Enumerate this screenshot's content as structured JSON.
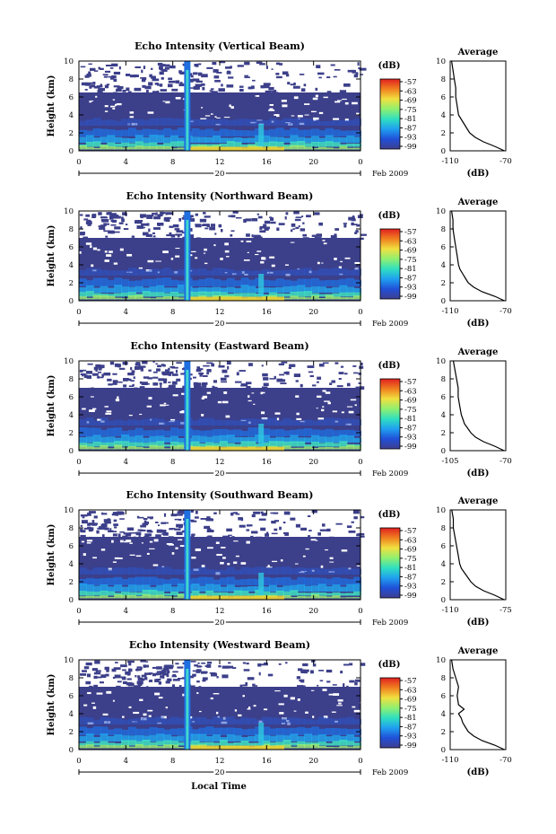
{
  "panels": [
    {
      "id": "vertical",
      "title": "Echo Intensity (Vertical Beam)",
      "date_center": "20",
      "date_label": "Feb 2009",
      "avg_xticks": [
        "-110",
        "-70"
      ]
    },
    {
      "id": "northward",
      "title": "Echo Intensity (Northward Beam)",
      "date_center": "20",
      "date_label": "Feb 2009",
      "avg_xticks": [
        "-110",
        "-70"
      ]
    },
    {
      "id": "eastward",
      "title": "Echo Intensity (Eastward Beam)",
      "date_center": "20",
      "date_label": "Feb 2009",
      "avg_xticks": [
        "-105",
        "-70"
      ]
    },
    {
      "id": "southward",
      "title": "Echo Intensity (Southward Beam)",
      "date_center": "20",
      "date_label": "Feb 2009",
      "avg_xticks": [
        "-110",
        "-75"
      ]
    },
    {
      "id": "westward",
      "title": "Echo Intensity (Westward Beam)",
      "date_center": "20",
      "date_label": "Feb 2009",
      "avg_xticks": [
        "-110",
        "-70"
      ]
    }
  ],
  "shared": {
    "ylabel": "Height (km)",
    "xlabel": "Local Time",
    "colorbar_unit": "(dB)",
    "avg_title": "Average",
    "avg_xlabel": "(dB)",
    "colorbar_ticks": [
      "-57",
      "-63",
      "-69",
      "-75",
      "-81",
      "-87",
      "-93",
      "-99"
    ],
    "colorbar_colors": [
      "#3f3f8f",
      "#2050d8",
      "#20a0f0",
      "#30e0c0",
      "#90f070",
      "#f0e040",
      "#f08020",
      "#e02020"
    ],
    "bg_color": "#3c3f8a",
    "high_echo_color": "#f0d030"
  },
  "chart_data": [
    {
      "type": "heatmap",
      "panel": "vertical",
      "x": [
        0,
        24
      ],
      "ylim": [
        0,
        10
      ],
      "xticks": [
        "0",
        "4",
        "8",
        "12",
        "16",
        "20",
        "0"
      ],
      "yticks": [
        "0",
        "2",
        "4",
        "6",
        "8",
        "10"
      ],
      "features": {
        "rain_event_local_time": 9.2,
        "cloud_top_km": 6.5,
        "sparse_echo_top_km": 10
      }
    },
    {
      "type": "line",
      "panel": "vertical-average",
      "xlim": [
        -110,
        -70
      ],
      "ylim": [
        0,
        10
      ],
      "yticks": [
        "0",
        "2",
        "4",
        "6",
        "8",
        "10"
      ],
      "height_km": [
        0,
        0.5,
        1,
        1.5,
        2,
        2.5,
        3,
        3.5,
        4,
        5,
        6,
        7,
        8,
        9,
        10
      ],
      "echo_db": [
        -71,
        -78,
        -86,
        -92,
        -96,
        -98,
        -100,
        -102,
        -104,
        -105,
        -106,
        -106,
        -107,
        -108,
        -109
      ]
    },
    {
      "type": "heatmap",
      "panel": "northward",
      "x": [
        0,
        24
      ],
      "ylim": [
        0,
        10
      ],
      "xticks": [
        "0",
        "4",
        "8",
        "12",
        "16",
        "20",
        "0"
      ],
      "yticks": [
        "0",
        "2",
        "4",
        "6",
        "8",
        "10"
      ],
      "features": {
        "rain_event_local_time": 9.2,
        "cloud_top_km": 7,
        "sparse_echo_top_km": 10
      }
    },
    {
      "type": "line",
      "panel": "northward-average",
      "xlim": [
        -110,
        -70
      ],
      "ylim": [
        0,
        10
      ],
      "yticks": [
        "0",
        "2",
        "4",
        "6",
        "8",
        "10"
      ],
      "height_km": [
        0,
        0.5,
        1,
        1.5,
        2,
        2.5,
        3,
        3.5,
        4,
        5,
        6,
        7,
        8,
        9,
        10
      ],
      "echo_db": [
        -71,
        -78,
        -87,
        -93,
        -97,
        -99,
        -101,
        -103,
        -104,
        -105,
        -106,
        -107,
        -108,
        -108,
        -109
      ]
    },
    {
      "type": "heatmap",
      "panel": "eastward",
      "x": [
        0,
        24
      ],
      "ylim": [
        0,
        10
      ],
      "xticks": [
        "0",
        "4",
        "8",
        "12",
        "16",
        "20",
        "0"
      ],
      "yticks": [
        "0",
        "2",
        "4",
        "6",
        "8",
        "10"
      ],
      "features": {
        "rain_event_local_time": 9.2,
        "cloud_top_km": 7,
        "sparse_echo_top_km": 10
      }
    },
    {
      "type": "line",
      "panel": "eastward-average",
      "xlim": [
        -105,
        -70
      ],
      "ylim": [
        0,
        10
      ],
      "yticks": [
        "0",
        "2",
        "4",
        "6",
        "8",
        "10"
      ],
      "height_km": [
        0,
        0.5,
        1,
        1.5,
        2,
        2.5,
        3,
        3.5,
        4,
        5,
        6,
        7,
        8,
        9,
        10
      ],
      "echo_db": [
        -71,
        -77,
        -84,
        -89,
        -92,
        -94,
        -96,
        -97,
        -98,
        -99,
        -100,
        -100,
        -101,
        -102,
        -103
      ]
    },
    {
      "type": "heatmap",
      "panel": "southward",
      "x": [
        0,
        24
      ],
      "ylim": [
        0,
        10
      ],
      "xticks": [
        "0",
        "4",
        "8",
        "12",
        "16",
        "20",
        "0"
      ],
      "yticks": [
        "0",
        "2",
        "4",
        "6",
        "8",
        "10"
      ],
      "features": {
        "rain_event_local_time": 9.2,
        "cloud_top_km": 7,
        "sparse_echo_top_km": 10
      }
    },
    {
      "type": "line",
      "panel": "southward-average",
      "xlim": [
        -110,
        -75
      ],
      "ylim": [
        0,
        10
      ],
      "yticks": [
        "0",
        "2",
        "4",
        "6",
        "8",
        "10"
      ],
      "height_km": [
        0,
        0.5,
        1,
        1.5,
        2,
        2.5,
        3,
        3.5,
        4,
        5,
        6,
        7,
        8,
        9,
        10
      ],
      "echo_db": [
        -76,
        -82,
        -89,
        -94,
        -97,
        -99,
        -101,
        -103,
        -104,
        -105,
        -106,
        -107,
        -108,
        -108,
        -109
      ]
    },
    {
      "type": "heatmap",
      "panel": "westward",
      "x": [
        0,
        24
      ],
      "ylim": [
        0,
        10
      ],
      "xticks": [
        "0",
        "4",
        "8",
        "12",
        "16",
        "20",
        "0"
      ],
      "yticks": [
        "0",
        "2",
        "4",
        "6",
        "8",
        "10"
      ],
      "features": {
        "rain_event_local_time": 9.2,
        "cloud_top_km": 7,
        "sparse_echo_top_km": 10
      }
    },
    {
      "type": "line",
      "panel": "westward-average",
      "xlim": [
        -110,
        -70
      ],
      "ylim": [
        0,
        10
      ],
      "yticks": [
        "0",
        "2",
        "4",
        "6",
        "8",
        "10"
      ],
      "height_km": [
        0,
        0.5,
        1,
        1.5,
        2,
        2.5,
        3,
        3.5,
        4,
        4.5,
        5,
        6,
        7,
        8,
        9,
        10
      ],
      "echo_db": [
        -71,
        -78,
        -87,
        -93,
        -97,
        -99,
        -101,
        -102,
        -104,
        -100,
        -104,
        -105,
        -104,
        -106,
        -108,
        -109
      ]
    }
  ]
}
